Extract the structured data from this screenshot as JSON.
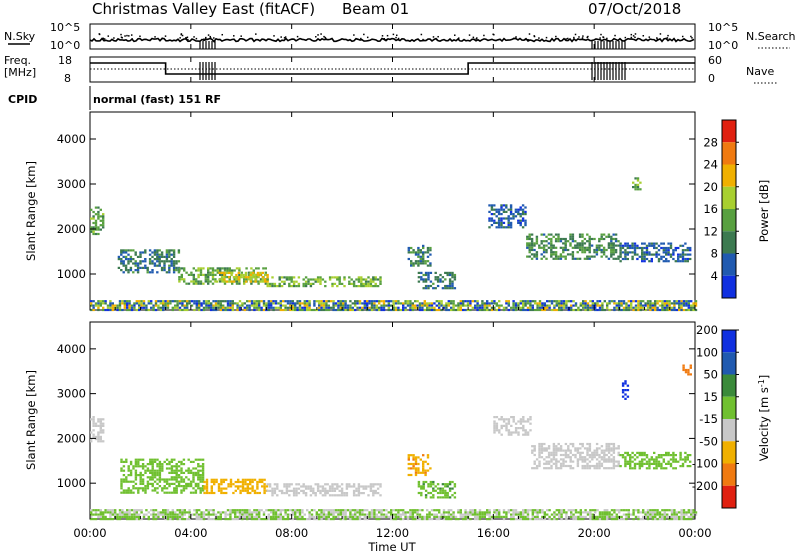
{
  "header": {
    "title": "Christmas Valley East (fitACF)",
    "beam": "Beam 01",
    "date": "07/Oct/2018"
  },
  "noise_panel": {
    "left_label": "N.Sky",
    "left_ticks": [
      "10^5",
      "10^0"
    ],
    "right_ticks": [
      "10^5",
      "10^0"
    ],
    "right_label": "N.Search"
  },
  "freq_panel": {
    "left_label_1": "Freq.",
    "left_label_2": "[MHz]",
    "left_ticks": [
      "18",
      "8"
    ],
    "right_ticks": [
      "60",
      "0"
    ],
    "right_label": "Nave"
  },
  "cpid": {
    "label": "CPID",
    "mode": "normal (fast) 151 RF"
  },
  "x_axis": {
    "ticks": [
      "00:00",
      "04:00",
      "08:00",
      "12:00",
      "16:00",
      "20:00",
      "00:00"
    ],
    "label": "Time UT"
  },
  "colors": {
    "power": [
      "#1030e0",
      "#205ab0",
      "#3c7a50",
      "#58a040",
      "#a8cf30",
      "#f0b000",
      "#f07a10",
      "#e02010"
    ],
    "velocity": [
      "#1030e0",
      "#205ab0",
      "#3a8a3a",
      "#70c030",
      "#c8c8c8",
      "#f0b000",
      "#f07a10",
      "#e02010"
    ]
  },
  "chart_data": [
    {
      "type": "heatmap",
      "panel": "power",
      "ylabel": "Slant Range [km]",
      "y_ticks": [
        "1000",
        "2000",
        "3000",
        "4000"
      ],
      "ylim": [
        200,
        4600
      ],
      "xlim": [
        0,
        24
      ],
      "colorbar": {
        "label": "Power [dB]",
        "ticks": [
          "4",
          "8",
          "12",
          "16",
          "20",
          "24",
          "28"
        ],
        "range": [
          0,
          32
        ]
      },
      "regions": [
        {
          "t0": 0.0,
          "t1": 0.5,
          "r0": 1900,
          "r1": 2500,
          "level": 13
        },
        {
          "t0": 1.1,
          "t1": 3.5,
          "r0": 1050,
          "r1": 1550,
          "level": 9
        },
        {
          "t0": 3.5,
          "t1": 7.0,
          "r0": 800,
          "r1": 1150,
          "level": 14
        },
        {
          "t0": 5.0,
          "t1": 7.0,
          "r0": 850,
          "r1": 1050,
          "level": 20
        },
        {
          "t0": 7.0,
          "t1": 11.5,
          "r0": 750,
          "r1": 950,
          "level": 15
        },
        {
          "t0": 12.6,
          "t1": 13.5,
          "r0": 1200,
          "r1": 1650,
          "level": 10
        },
        {
          "t0": 13.0,
          "t1": 14.5,
          "r0": 700,
          "r1": 1050,
          "level": 9
        },
        {
          "t0": 15.8,
          "t1": 17.3,
          "r0": 2050,
          "r1": 2550,
          "level": 6
        },
        {
          "t0": 17.3,
          "t1": 21.0,
          "r0": 1350,
          "r1": 1900,
          "level": 11
        },
        {
          "t0": 21.0,
          "t1": 23.8,
          "r0": 1300,
          "r1": 1700,
          "level": 7
        },
        {
          "t0": 21.5,
          "t1": 21.8,
          "r0": 2900,
          "r1": 3150,
          "level": 14
        },
        {
          "t0": 0.0,
          "t1": 24.0,
          "r0": 200,
          "r1": 420,
          "level": 12
        }
      ]
    },
    {
      "type": "heatmap",
      "panel": "velocity",
      "ylabel": "Slant Range [km]",
      "y_ticks": [
        "1000",
        "2000",
        "3000",
        "4000"
      ],
      "ylim": [
        200,
        4600
      ],
      "xlim": [
        0,
        24
      ],
      "colorbar": {
        "label": "Velocity [m s",
        "label_sup": "-1",
        "label_end": "]",
        "ticks": [
          "-200",
          "-100",
          "-50",
          "-15",
          "15",
          "50",
          "100",
          "200"
        ],
        "range": [
          -250,
          250
        ]
      },
      "regions": [
        {
          "t0": 0.0,
          "t1": 0.5,
          "r0": 1950,
          "r1": 2500,
          "velocity": 0
        },
        {
          "t0": 1.2,
          "t1": 4.5,
          "r0": 800,
          "r1": 1550,
          "velocity": 30
        },
        {
          "t0": 4.5,
          "t1": 7.0,
          "r0": 800,
          "r1": 1100,
          "velocity": -30
        },
        {
          "t0": 7.0,
          "t1": 11.5,
          "r0": 750,
          "r1": 1000,
          "velocity": 0
        },
        {
          "t0": 12.6,
          "t1": 13.5,
          "r0": 1200,
          "r1": 1650,
          "velocity": -40
        },
        {
          "t0": 13.0,
          "t1": 14.5,
          "r0": 700,
          "r1": 1050,
          "velocity": 40
        },
        {
          "t0": 16.0,
          "t1": 17.5,
          "r0": 2100,
          "r1": 2500,
          "velocity": 0
        },
        {
          "t0": 17.5,
          "t1": 21.0,
          "r0": 1350,
          "r1": 1900,
          "velocity": 0
        },
        {
          "t0": 21.0,
          "t1": 23.8,
          "r0": 1350,
          "r1": 1700,
          "velocity": 30
        },
        {
          "t0": 21.1,
          "t1": 21.3,
          "r0": 2900,
          "r1": 3300,
          "velocity": 220
        },
        {
          "t0": 23.5,
          "t1": 23.8,
          "r0": 3450,
          "r1": 3650,
          "velocity": -80
        },
        {
          "t0": 0.0,
          "t1": 24.0,
          "r0": 200,
          "r1": 420,
          "velocity": 20
        }
      ]
    }
  ]
}
